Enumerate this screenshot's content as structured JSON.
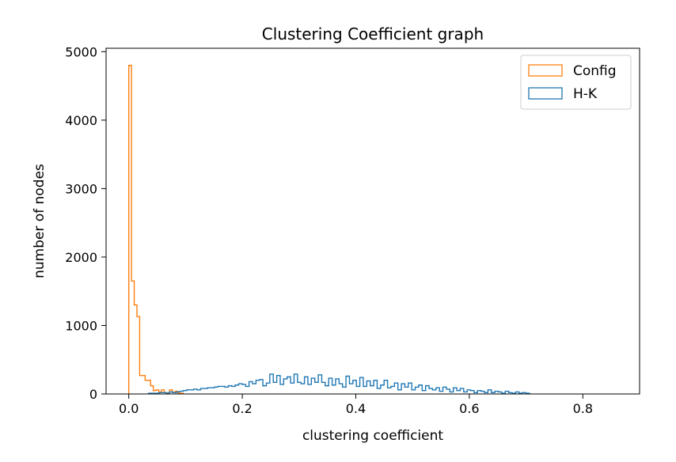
{
  "chart_data": {
    "type": "histogram",
    "title": "Clustering Coefficient graph",
    "xlabel": "clustering coefficient",
    "ylabel": "number of nodes",
    "xlim": [
      -0.04,
      0.9
    ],
    "ylim": [
      0,
      5050
    ],
    "xticks": [
      0.0,
      0.2,
      0.4,
      0.6,
      0.8
    ],
    "xtick_labels": [
      "0.0",
      "0.2",
      "0.4",
      "0.6",
      "0.8"
    ],
    "yticks": [
      0,
      1000,
      2000,
      3000,
      4000,
      5000
    ],
    "ytick_labels": [
      "0",
      "1000",
      "2000",
      "3000",
      "4000",
      "5000"
    ],
    "grid": false,
    "legend_position": "top-right",
    "histtype": "step",
    "series": [
      {
        "name": "Config",
        "color": "#ff7f0e",
        "bin_start": 0.0,
        "bin_width": 0.0048,
        "counts": [
          4800,
          1650,
          1300,
          1130,
          270,
          270,
          200,
          200,
          120,
          50,
          60,
          30,
          60,
          20,
          20,
          60,
          20,
          40,
          10,
          10
        ]
      },
      {
        "name": "H-K",
        "color": "#1f77b4",
        "bin_start": 0.035,
        "bin_width": 0.0061,
        "counts": [
          10,
          10,
          10,
          20,
          20,
          10,
          30,
          20,
          30,
          40,
          50,
          60,
          60,
          70,
          60,
          80,
          80,
          90,
          90,
          100,
          110,
          110,
          100,
          120,
          110,
          130,
          150,
          140,
          110,
          180,
          150,
          200,
          210,
          120,
          160,
          290,
          170,
          270,
          140,
          220,
          250,
          160,
          290,
          170,
          150,
          250,
          140,
          230,
          170,
          280,
          170,
          120,
          230,
          130,
          220,
          150,
          100,
          260,
          150,
          200,
          110,
          240,
          110,
          190,
          120,
          200,
          80,
          130,
          200,
          90,
          110,
          160,
          60,
          150,
          100,
          160,
          60,
          100,
          130,
          50,
          120,
          80,
          60,
          90,
          40,
          100,
          70,
          30,
          90,
          50,
          80,
          30,
          60,
          50,
          20,
          50,
          40,
          20,
          60,
          20,
          40,
          30,
          10,
          40,
          20,
          10,
          30,
          10,
          20,
          10
        ]
      }
    ]
  }
}
